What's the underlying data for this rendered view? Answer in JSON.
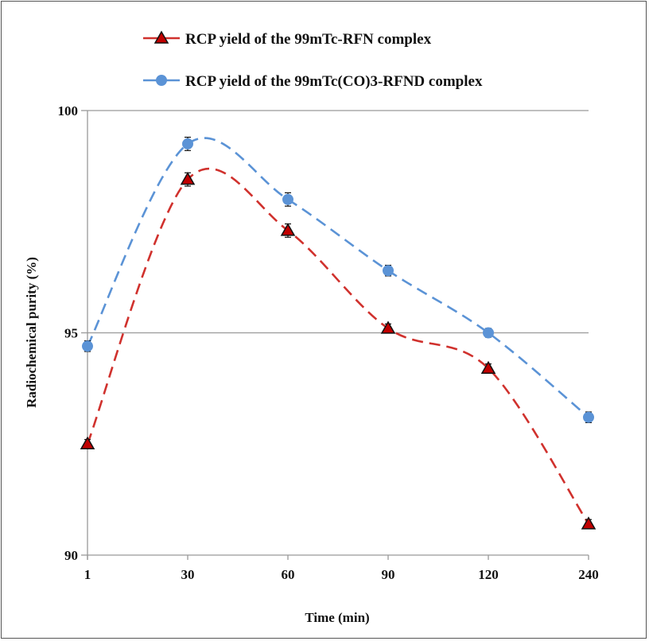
{
  "chart_data": {
    "type": "line",
    "xlabel": "Time (min)",
    "ylabel": "Radiochemical purity  (%)",
    "categories": [
      "1",
      "30",
      "60",
      "90",
      "120",
      "240"
    ],
    "ylim": [
      90,
      100
    ],
    "yticks": [
      "90",
      "95",
      "100"
    ],
    "grid": "horizontal",
    "legend_position": "top",
    "series": [
      {
        "name": "RCP yield of the 99mTc-RFN complex",
        "color": "#d0312d",
        "marker": "triangle",
        "line": "dashed-smooth",
        "values": [
          92.5,
          98.45,
          97.3,
          95.1,
          94.2,
          90.7
        ],
        "error": [
          0.1,
          0.15,
          0.15,
          0.1,
          0.1,
          0.1
        ]
      },
      {
        "name": "RCP yield of the 99mTc(CO)3-RFND complex",
        "color": "#5b93d6",
        "marker": "circle",
        "line": "dashed-smooth",
        "values": [
          94.7,
          99.25,
          98.0,
          96.4,
          95.0,
          93.1
        ],
        "error": [
          0.12,
          0.15,
          0.15,
          0.12,
          0.1,
          0.12
        ]
      }
    ]
  }
}
